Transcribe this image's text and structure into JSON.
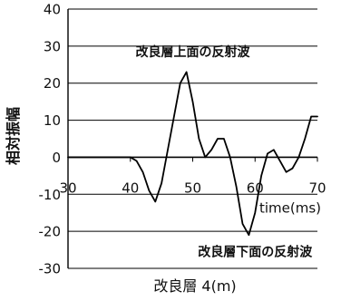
{
  "chart_data": {
    "type": "line",
    "title": "",
    "xlabel": "time(ms)",
    "ylabel": "相対振幅",
    "caption": "改良層 4(m)",
    "xlim": [
      30,
      70
    ],
    "ylim": [
      -30,
      40
    ],
    "x_ticks": [
      30,
      40,
      50,
      60,
      70
    ],
    "y_ticks": [
      40,
      30,
      20,
      10,
      0,
      -10,
      -20,
      -30
    ],
    "grid": "horizontal",
    "legend": "none",
    "series": [
      {
        "color": "#000000",
        "x": [
          30,
          32,
          34,
          36,
          38,
          40,
          41,
          42,
          43,
          44,
          45,
          46,
          47,
          48,
          49,
          50,
          51,
          52,
          53,
          54,
          55,
          56,
          57,
          58,
          59,
          60,
          61,
          62,
          63,
          64,
          65,
          66,
          67,
          68,
          69,
          70
        ],
        "y": [
          0,
          0,
          0,
          0,
          0,
          0,
          -1,
          -4,
          -9,
          -12,
          -7,
          2,
          11,
          20,
          23,
          15,
          5,
          0,
          2,
          5,
          5,
          0,
          -8,
          -18,
          -21,
          -15,
          -5,
          1,
          2,
          -1,
          -4,
          -3,
          0,
          5,
          11,
          11
        ]
      }
    ],
    "annotations": [
      {
        "text": "改良層上面の反射波",
        "x": 50,
        "y": 28.5
      },
      {
        "text": "改良層下面の反射波",
        "x": 60,
        "y": -25.5
      }
    ],
    "colors": {
      "axis": "#000000",
      "grid": "#000000",
      "line": "#000000"
    }
  }
}
